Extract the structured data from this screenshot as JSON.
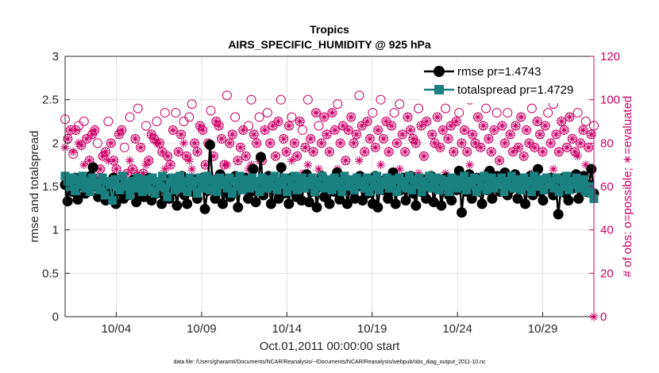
{
  "chart_data": {
    "type": "line",
    "title_line1": "Tropics",
    "title_line2": "AIRS_SPECIFIC_HUMIDITY @ 925 hPa",
    "xlabel": "Oct.01,2011 00:00:00 start",
    "ylabel_left": "rmse and totalspread",
    "ylabel_right": "# of obs: o=possible; ∗=evaluated",
    "footer": "data file: /Users/gharamti/Documents/NCAR/Reanalysis/~/Documents/NCAR/Reanalysis/webpub/obs_diag_output_2011-10.nc",
    "x_range_days": [
      1,
      32
    ],
    "y_left_range": [
      0,
      3
    ],
    "y_right_range": [
      0,
      120
    ],
    "y_left_ticks": [
      "0",
      "0.5",
      "1",
      "1.5",
      "2",
      "2.5",
      "3"
    ],
    "y_right_ticks": [
      "0",
      "20",
      "40",
      "60",
      "80",
      "100",
      "120"
    ],
    "x_ticks": [
      {
        "day": 4,
        "label": "10/04"
      },
      {
        "day": 9,
        "label": "10/09"
      },
      {
        "day": 14,
        "label": "10/14"
      },
      {
        "day": 19,
        "label": "10/19"
      },
      {
        "day": 24,
        "label": "10/24"
      },
      {
        "day": 29,
        "label": "10/29"
      }
    ],
    "series": [
      {
        "name": "rmse",
        "legend": "rmse pr=1.4743",
        "color": "#000000",
        "marker": "circle",
        "values": [
          1.52,
          1.33,
          1.58,
          1.44,
          1.6,
          1.35,
          1.52,
          1.6,
          1.42,
          1.56,
          1.62,
          1.72,
          1.5,
          1.38,
          1.46,
          1.52,
          1.34,
          1.55,
          1.44,
          1.6,
          1.3,
          1.45,
          1.55,
          1.36,
          1.48,
          1.4,
          1.5,
          1.58,
          1.32,
          1.44,
          1.52,
          1.38,
          1.46,
          1.6,
          1.34,
          1.5,
          1.42,
          1.55,
          1.3,
          1.47,
          1.58,
          1.36,
          1.44,
          1.52,
          1.28,
          1.5,
          1.62,
          1.4,
          1.3,
          1.54,
          1.44,
          1.58,
          1.36,
          1.49,
          1.6,
          1.24,
          1.45,
          1.98,
          1.55,
          1.36,
          1.5,
          1.64,
          1.3,
          1.44,
          1.56,
          1.38,
          1.5,
          1.62,
          1.26,
          1.52,
          1.48,
          1.6,
          1.36,
          1.44,
          1.7,
          1.32,
          1.55,
          1.84,
          1.4,
          1.5,
          1.62,
          1.3,
          1.46,
          1.56,
          1.36,
          1.72,
          1.42,
          1.52,
          1.3,
          1.6,
          1.46,
          1.38,
          1.54,
          1.34,
          1.5,
          1.64,
          1.32,
          1.44,
          1.56,
          1.26,
          1.5,
          1.62,
          1.38,
          1.48,
          1.3,
          1.54,
          1.44,
          1.66,
          1.35,
          1.52,
          1.6,
          1.3,
          1.46,
          1.56,
          1.36,
          1.5,
          1.62,
          1.34,
          1.5,
          1.42,
          1.56,
          1.3,
          1.62,
          1.26,
          1.52,
          1.46,
          1.58,
          1.36,
          1.44,
          1.66,
          1.3,
          1.52,
          1.46,
          1.6,
          1.34,
          1.5,
          1.62,
          1.42,
          1.28,
          1.54,
          1.44,
          1.58,
          1.36,
          1.5,
          1.62,
          1.32,
          1.48,
          1.56,
          1.28,
          1.5,
          1.6,
          1.4,
          1.34,
          1.54,
          1.46,
          1.68,
          1.2,
          1.5,
          1.44,
          1.64,
          1.36,
          1.52,
          1.6,
          1.44,
          1.3,
          1.52,
          1.46,
          1.68,
          1.36,
          1.5,
          1.62,
          1.44,
          1.56,
          1.66,
          1.4,
          1.46,
          1.52,
          1.64,
          1.36,
          1.5,
          1.58,
          1.3,
          1.46,
          1.62,
          1.4,
          1.52,
          1.7,
          1.44,
          1.34,
          1.56,
          1.48,
          1.6,
          1.4,
          1.52,
          1.18,
          1.46,
          1.6,
          1.42,
          1.34,
          1.58,
          1.48,
          1.64,
          1.36,
          1.5,
          1.62,
          1.44,
          1.52,
          1.7,
          1.42
        ]
      },
      {
        "name": "totalspread",
        "legend": "totalspread pr=1.4729",
        "color": "#1a8080",
        "marker": "square",
        "values": [
          1.62,
          1.56,
          1.5,
          1.6,
          1.45,
          1.58,
          1.52,
          1.62,
          1.48,
          1.56,
          1.44,
          1.6,
          1.5,
          1.54,
          1.46,
          1.6,
          1.4,
          1.56,
          1.52,
          1.34,
          1.58,
          1.5,
          1.46,
          1.62,
          1.54,
          1.5,
          1.4,
          1.56,
          1.48,
          1.6,
          1.52,
          1.44,
          1.58,
          1.5,
          1.46,
          1.6,
          1.42,
          1.56,
          1.5,
          1.62,
          1.48,
          1.38,
          1.55,
          1.6,
          1.46,
          1.52,
          1.62,
          1.48,
          1.56,
          1.44,
          1.6,
          1.5,
          1.56,
          1.42,
          1.6,
          1.48,
          1.54,
          1.62,
          1.46,
          1.58,
          1.5,
          1.44,
          1.6,
          1.52,
          1.56,
          1.48,
          1.6,
          1.42,
          1.56,
          1.5,
          1.62,
          1.46,
          1.54,
          1.58,
          1.48,
          1.6,
          1.5,
          1.56,
          1.44,
          1.6,
          1.52,
          1.48,
          1.58,
          1.5,
          1.62,
          1.46,
          1.56,
          1.52,
          1.6,
          1.44,
          1.58,
          1.5,
          1.62,
          1.46,
          1.54,
          1.6,
          1.48,
          1.56,
          1.52,
          1.6,
          1.44,
          1.56,
          1.5,
          1.62,
          1.48,
          1.58,
          1.52,
          1.46,
          1.6,
          1.5,
          1.56,
          1.44,
          1.62,
          1.5,
          1.54,
          1.58,
          1.46,
          1.6,
          1.52,
          1.56,
          1.48,
          1.6,
          1.44,
          1.58,
          1.5,
          1.62,
          1.46,
          1.56,
          1.52,
          1.6,
          1.48,
          1.54,
          1.58,
          1.44,
          1.6,
          1.5,
          1.56,
          1.48,
          1.62,
          1.46,
          1.58,
          1.52,
          1.6,
          1.44,
          1.56,
          1.5,
          1.62,
          1.48,
          1.54,
          1.6,
          1.46,
          1.58,
          1.5,
          1.56,
          1.44,
          1.6,
          1.52,
          1.48,
          1.58,
          1.5,
          1.62,
          1.46,
          1.56,
          1.52,
          1.6,
          1.44,
          1.58,
          1.5,
          1.62,
          1.46,
          1.54,
          1.6,
          1.48,
          1.56,
          1.52,
          1.6,
          1.44,
          1.56,
          1.5,
          1.62,
          1.48,
          1.58,
          1.52,
          1.46,
          1.6,
          1.5,
          1.56,
          1.44,
          1.62,
          1.5,
          1.54,
          1.58,
          1.46,
          1.6,
          1.52,
          1.56,
          1.48,
          1.6,
          1.44,
          1.58,
          1.5,
          1.62,
          1.46,
          1.56,
          1.52,
          1.6,
          1.48,
          1.54,
          1.58,
          1.44,
          1.5,
          1.42,
          1.36
        ]
      },
      {
        "name": "nposs",
        "color": "#cc0066",
        "marker": "open-circle",
        "axis": "right",
        "values": [
          91,
          82,
          86,
          75,
          86,
          88,
          79,
          90,
          82,
          72,
          84,
          86,
          80,
          68,
          74,
          76,
          90,
          80,
          72,
          68,
          84,
          86,
          78,
          66,
          92,
          68,
          82,
          96,
          78,
          66,
          88,
          72,
          84,
          82,
          90,
          80,
          76,
          94,
          74,
          70,
          86,
          94,
          76,
          84,
          90,
          74,
          92,
          98,
          80,
          76,
          88,
          86,
          70,
          80,
          95,
          74,
          90,
          88,
          82,
          70,
          102,
          80,
          84,
          92,
          72,
          78,
          86,
          74,
          88,
          100,
          84,
          80,
          92,
          72,
          86,
          94,
          80,
          88,
          74,
          90,
          100,
          82,
          76,
          88,
          92,
          80,
          74,
          90,
          86,
          78,
          100,
          82,
          76,
          94,
          88,
          80,
          92,
          84,
          76,
          94,
          86,
          98,
          80,
          88,
          72,
          86,
          92,
          80,
          84,
          102,
          88,
          76,
          90,
          82,
          94,
          78,
          86,
          100,
          82,
          90,
          76,
          88,
          94,
          80,
          98,
          84,
          76,
          92,
          86,
          82,
          80,
          96,
          88,
          74,
          90,
          104,
          84,
          80,
          92,
          78,
          86,
          96,
          82,
          88,
          76,
          90,
          94,
          80,
          86,
          76,
          100,
          84,
          80,
          92,
          78,
          88,
          96,
          82,
          76,
          86,
          94,
          72,
          88,
          80,
          94,
          84,
          76,
          88,
          78,
          92,
          74,
          86,
          80,
          96,
          78,
          90,
          84,
          76,
          88,
          94,
          80,
          98,
          84,
          76,
          90,
          86,
          78,
          92,
          82,
          76,
          94,
          80,
          86,
          90,
          78,
          84,
          88
        ]
      },
      {
        "name": "nused",
        "color": "#cc0066",
        "marker": "asterisk",
        "axis": "right",
        "values": [
          78,
          82,
          86,
          76,
          86,
          80,
          79,
          70,
          82,
          72,
          84,
          86,
          64,
          68,
          74,
          76,
          72,
          80,
          72,
          68,
          84,
          86,
          60,
          66,
          72,
          68,
          82,
          66,
          78,
          66,
          70,
          72,
          84,
          82,
          80,
          80,
          76,
          68,
          74,
          70,
          86,
          64,
          76,
          84,
          80,
          74,
          72,
          68,
          80,
          76,
          88,
          86,
          70,
          80,
          65,
          74,
          90,
          88,
          82,
          70,
          70,
          80,
          84,
          62,
          72,
          78,
          86,
          74,
          68,
          70,
          84,
          80,
          72,
          72,
          86,
          64,
          80,
          88,
          74,
          90,
          60,
          82,
          76,
          88,
          72,
          80,
          74,
          90,
          66,
          78,
          70,
          82,
          76,
          94,
          68,
          80,
          92,
          84,
          76,
          94,
          86,
          68,
          80,
          88,
          72,
          86,
          92,
          80,
          84,
          72,
          88,
          76,
          90,
          82,
          64,
          78,
          86,
          70,
          82,
          90,
          76,
          88,
          64,
          80,
          68,
          84,
          76,
          92,
          86,
          82,
          80,
          66,
          88,
          74,
          90,
          64,
          84,
          80,
          92,
          78,
          86,
          66,
          82,
          88,
          76,
          90,
          64,
          80,
          86,
          76,
          70,
          84,
          80,
          92,
          78,
          88,
          66,
          82,
          76,
          86,
          64,
          72,
          88,
          80,
          64,
          84,
          76,
          88,
          78,
          92,
          74,
          86,
          80,
          66,
          78,
          90,
          84,
          76,
          88,
          64,
          80,
          68,
          84,
          76,
          90,
          86,
          78,
          92,
          82,
          76,
          74,
          80,
          86,
          70,
          78,
          84,
          0
        ]
      }
    ]
  }
}
